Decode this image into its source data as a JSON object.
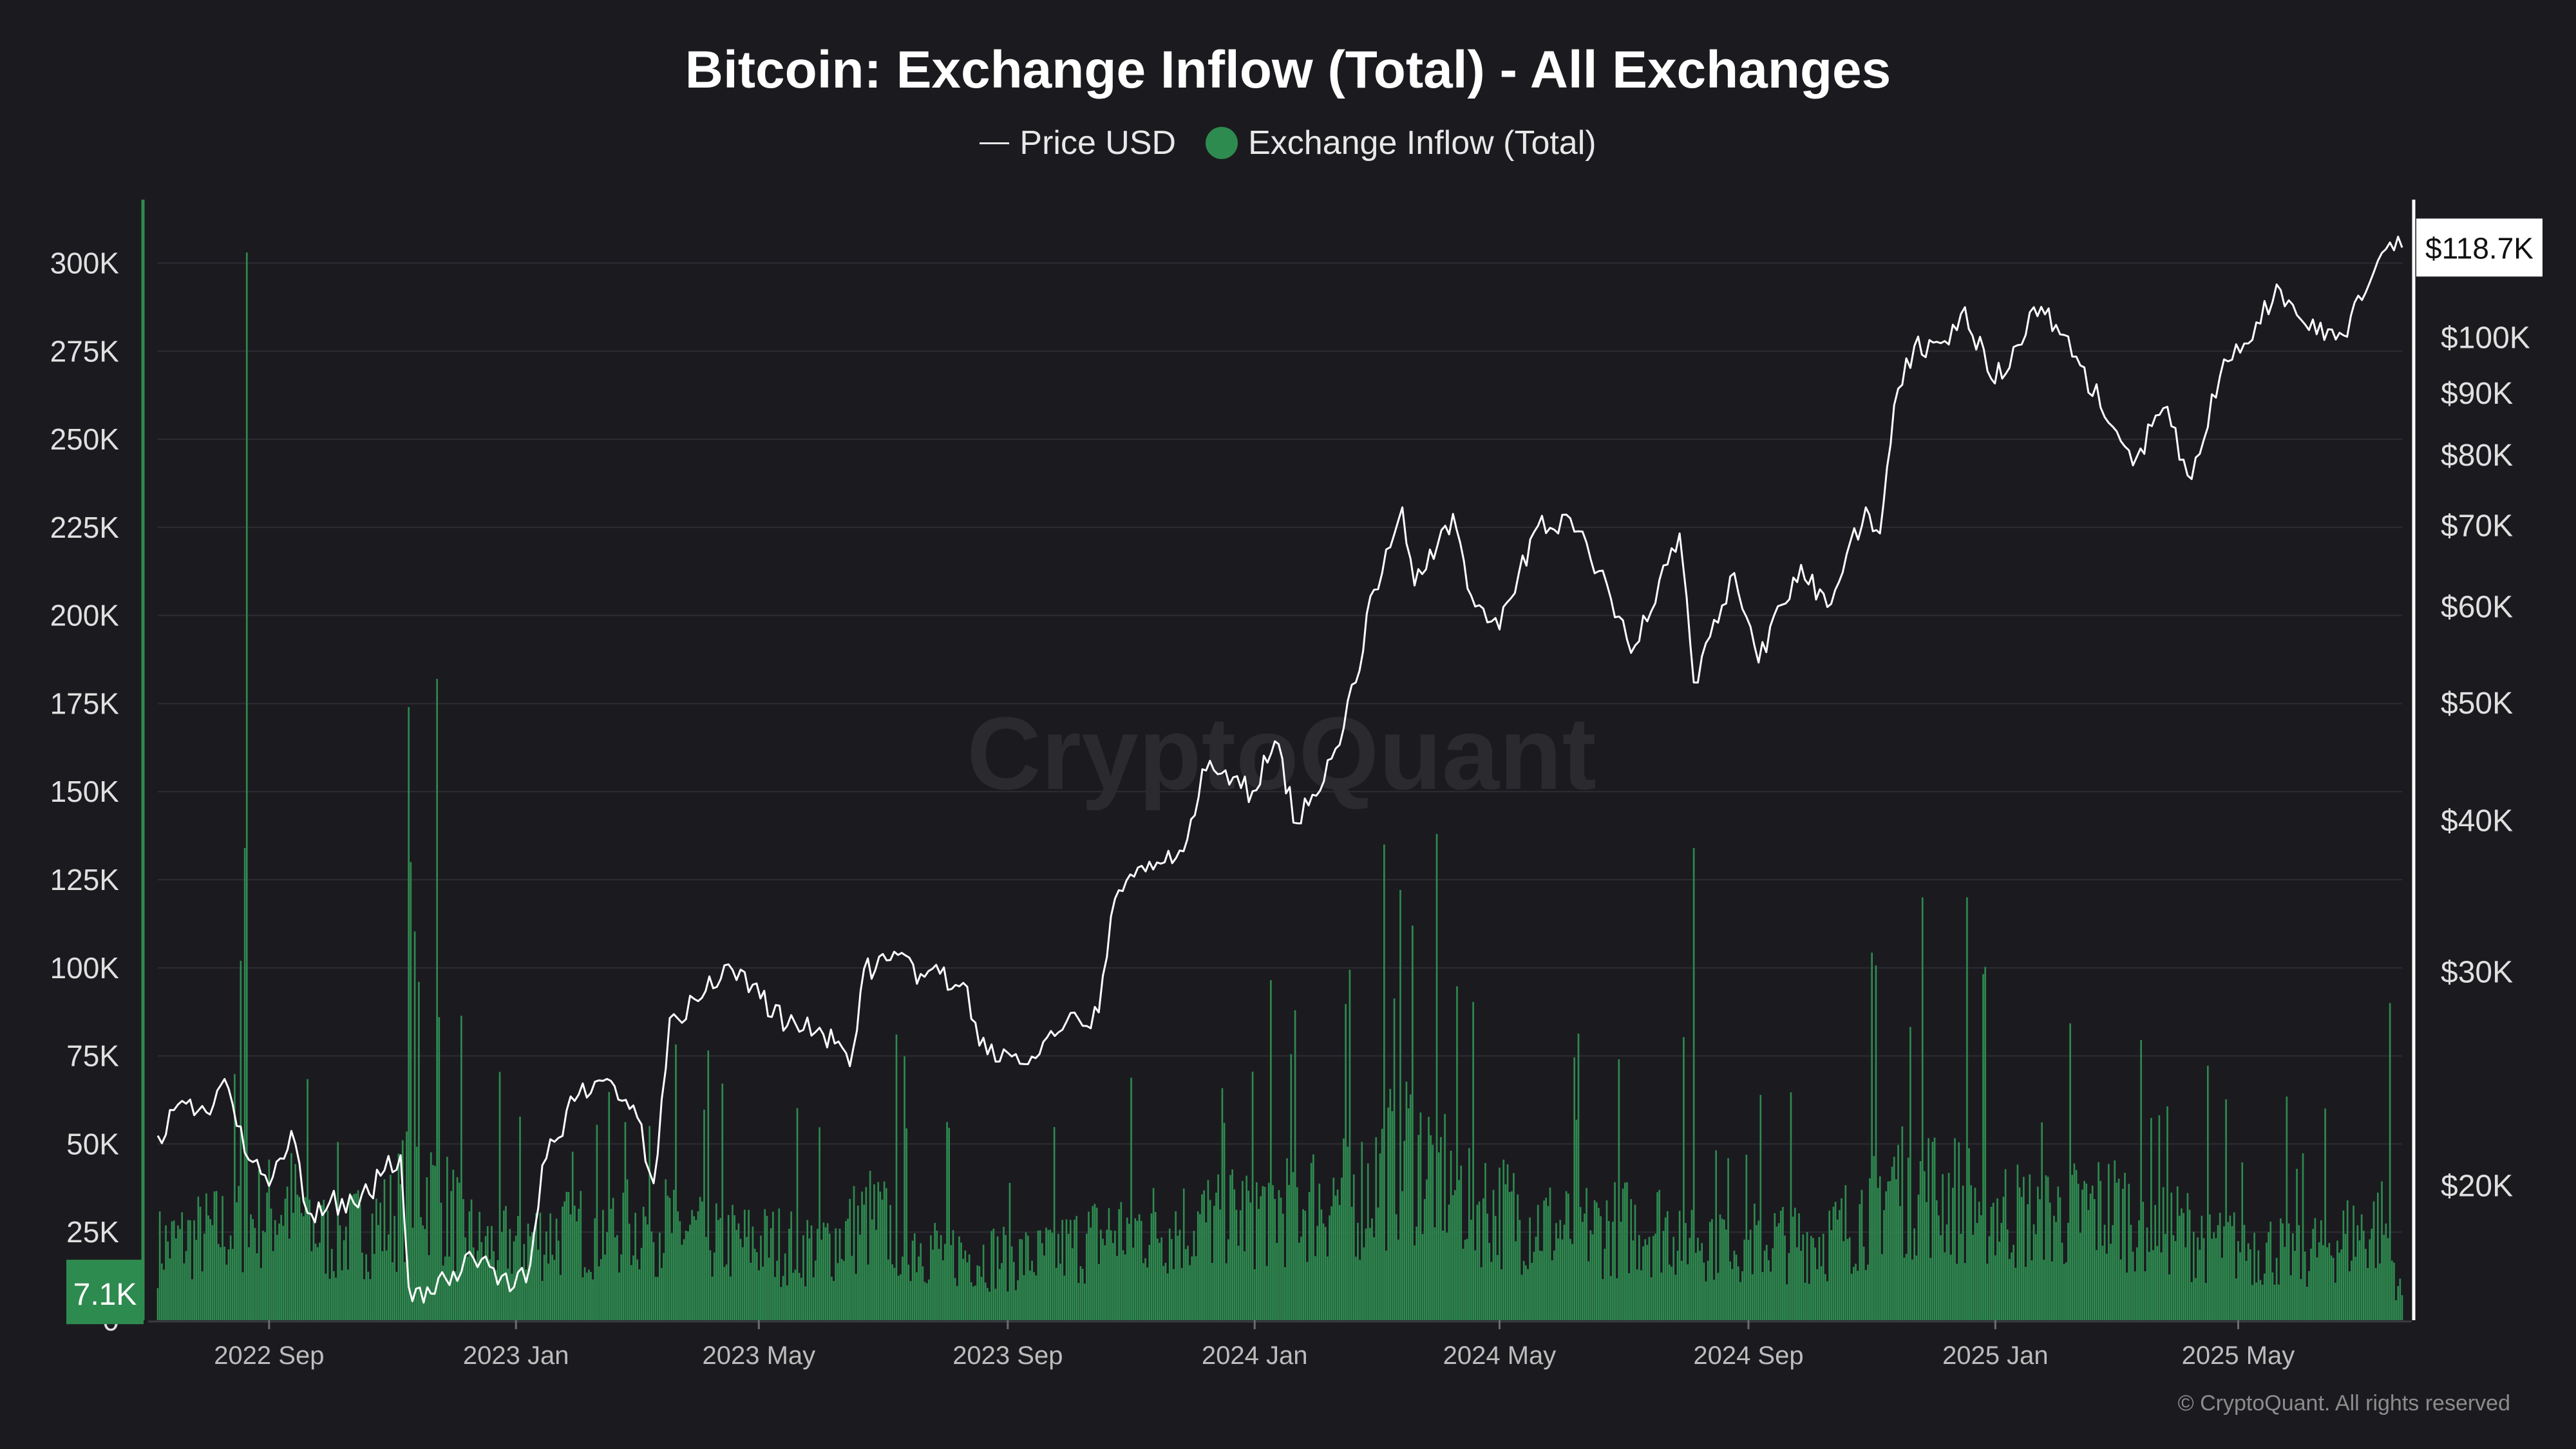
{
  "title": "Bitcoin: Exchange Inflow (Total) - All Exchanges",
  "legend": {
    "price_label": "Price USD",
    "inflow_label": "Exchange Inflow (Total)"
  },
  "watermark": "CryptoQuant",
  "copyright": "© CryptoQuant. All rights reserved",
  "colors": {
    "background": "#1b1b1f",
    "inflow": "#2e8b50",
    "price": "#ffffff",
    "grid": "#2c2c33",
    "badge_bg": "#2e8b50"
  },
  "badges": {
    "current_inflow": "7.1K",
    "current_price": "$118.7K"
  },
  "chart_data": {
    "type": "bar",
    "title": "Bitcoin: Exchange Inflow (Total) - All Exchanges",
    "x_range": [
      "2022-07-08",
      "2025-07-21"
    ],
    "x_ticks": [
      "2022 Sep",
      "2023 Jan",
      "2023 May",
      "2023 Sep",
      "2024 Jan",
      "2024 May",
      "2024 Sep",
      "2025 Jan",
      "2025 May"
    ],
    "y_left": {
      "ticks": [
        "0",
        "25K",
        "50K",
        "75K",
        "100K",
        "125K",
        "150K",
        "175K",
        "200K",
        "225K",
        "250K",
        "275K",
        "300K"
      ],
      "range": [
        0,
        318000
      ]
    },
    "y_right": {
      "scale": "log",
      "ticks": [
        "$20K",
        "$30K",
        "$40K",
        "$50K",
        "$60K",
        "$70K",
        "$80K",
        "$90K",
        "$100K"
      ],
      "range": [
        15500,
        130000
      ]
    },
    "series": [
      {
        "name": "Price USD",
        "type": "line",
        "points": [
          [
            "2022-07-08",
            22000
          ],
          [
            "2022-07-20",
            23500
          ],
          [
            "2022-08-01",
            23000
          ],
          [
            "2022-08-10",
            24500
          ],
          [
            "2022-08-20",
            21300
          ],
          [
            "2022-09-01",
            20000
          ],
          [
            "2022-09-12",
            22200
          ],
          [
            "2022-09-20",
            19000
          ],
          [
            "2022-10-01",
            19400
          ],
          [
            "2022-10-15",
            19200
          ],
          [
            "2022-10-28",
            20600
          ],
          [
            "2022-11-05",
            21200
          ],
          [
            "2022-11-09",
            16500
          ],
          [
            "2022-11-20",
            16300
          ],
          [
            "2022-12-01",
            17000
          ],
          [
            "2022-12-15",
            17400
          ],
          [
            "2022-12-31",
            16500
          ],
          [
            "2023-01-08",
            17200
          ],
          [
            "2023-01-14",
            20800
          ],
          [
            "2023-01-30",
            23500
          ],
          [
            "2023-02-15",
            24500
          ],
          [
            "2023-02-28",
            23300
          ],
          [
            "2023-03-10",
            20100
          ],
          [
            "2023-03-18",
            27500
          ],
          [
            "2023-04-01",
            28400
          ],
          [
            "2023-04-14",
            30400
          ],
          [
            "2023-04-28",
            29300
          ],
          [
            "2023-05-15",
            27100
          ],
          [
            "2023-05-31",
            27000
          ],
          [
            "2023-06-15",
            25100
          ],
          [
            "2023-06-22",
            30200
          ],
          [
            "2023-07-05",
            30700
          ],
          [
            "2023-07-20",
            29900
          ],
          [
            "2023-08-10",
            29400
          ],
          [
            "2023-08-18",
            26100
          ],
          [
            "2023-09-11",
            25200
          ],
          [
            "2023-09-28",
            26900
          ],
          [
            "2023-10-16",
            27800
          ],
          [
            "2023-10-24",
            34500
          ],
          [
            "2023-11-10",
            37000
          ],
          [
            "2023-11-25",
            37800
          ],
          [
            "2023-12-08",
            44000
          ],
          [
            "2023-12-31",
            42300
          ],
          [
            "2024-01-11",
            46500
          ],
          [
            "2024-01-22",
            39800
          ],
          [
            "2024-02-08",
            45000
          ],
          [
            "2024-02-20",
            52000
          ],
          [
            "2024-02-29",
            62000
          ],
          [
            "2024-03-14",
            72500
          ],
          [
            "2024-03-20",
            62500
          ],
          [
            "2024-04-08",
            71600
          ],
          [
            "2024-04-17",
            61300
          ],
          [
            "2024-05-01",
            57500
          ],
          [
            "2024-05-20",
            70000
          ],
          [
            "2024-06-05",
            71000
          ],
          [
            "2024-06-25",
            61000
          ],
          [
            "2024-07-05",
            55000
          ],
          [
            "2024-07-29",
            69000
          ],
          [
            "2024-08-05",
            52000
          ],
          [
            "2024-08-25",
            64000
          ],
          [
            "2024-09-06",
            54000
          ],
          [
            "2024-09-27",
            65000
          ],
          [
            "2024-10-10",
            60000
          ],
          [
            "2024-10-29",
            72500
          ],
          [
            "2024-11-05",
            69000
          ],
          [
            "2024-11-12",
            88000
          ],
          [
            "2024-11-22",
            98500
          ],
          [
            "2024-12-05",
            99000
          ],
          [
            "2024-12-17",
            106000
          ],
          [
            "2024-12-30",
            92500
          ],
          [
            "2025-01-08",
            94500
          ],
          [
            "2025-01-20",
            106000
          ],
          [
            "2025-01-31",
            102500
          ],
          [
            "2025-02-10",
            96500
          ],
          [
            "2025-02-28",
            84500
          ],
          [
            "2025-03-10",
            78500
          ],
          [
            "2025-03-25",
            87500
          ],
          [
            "2025-04-08",
            76500
          ],
          [
            "2025-04-22",
            93000
          ],
          [
            "2025-05-10",
            103000
          ],
          [
            "2025-05-22",
            109500
          ],
          [
            "2025-06-05",
            101500
          ],
          [
            "2025-06-22",
            100500
          ],
          [
            "2025-07-03",
            109000
          ],
          [
            "2025-07-11",
            117500
          ],
          [
            "2025-07-21",
            118700
          ]
        ]
      },
      {
        "name": "Exchange Inflow (Total)",
        "type": "bar",
        "anchors": [
          [
            "2022-07-08",
            26000
          ],
          [
            "2022-08-20",
            34000
          ],
          [
            "2022-09-10",
            42000
          ],
          [
            "2022-10-01",
            28000
          ],
          [
            "2022-11-01",
            36000
          ],
          [
            "2022-11-12",
            52000
          ],
          [
            "2022-12-15",
            26000
          ],
          [
            "2023-01-15",
            30000
          ],
          [
            "2023-03-10",
            35000
          ],
          [
            "2023-04-15",
            28000
          ],
          [
            "2023-06-01",
            26000
          ],
          [
            "2023-06-25",
            36000
          ],
          [
            "2023-08-01",
            24000
          ],
          [
            "2023-09-15",
            22000
          ],
          [
            "2023-10-25",
            32000
          ],
          [
            "2023-12-01",
            34000
          ],
          [
            "2024-01-11",
            40000
          ],
          [
            "2024-02-25",
            46000
          ],
          [
            "2024-03-15",
            62000
          ],
          [
            "2024-04-20",
            42000
          ],
          [
            "2024-06-01",
            32000
          ],
          [
            "2024-07-20",
            34000
          ],
          [
            "2024-09-01",
            28000
          ],
          [
            "2024-10-15",
            30000
          ],
          [
            "2024-11-12",
            50000
          ],
          [
            "2024-12-10",
            44000
          ],
          [
            "2025-01-20",
            36000
          ],
          [
            "2025-03-01",
            40000
          ],
          [
            "2025-04-20",
            28000
          ],
          [
            "2025-06-01",
            24000
          ],
          [
            "2025-07-12",
            34000
          ],
          [
            "2025-07-21",
            7100
          ]
        ],
        "spikes": [
          [
            "2022-08-21",
            303000
          ],
          [
            "2022-08-20",
            134000
          ],
          [
            "2022-08-18",
            102000
          ],
          [
            "2022-11-09",
            174000
          ],
          [
            "2022-11-10",
            130000
          ],
          [
            "2022-11-23",
            182000
          ],
          [
            "2022-11-14",
            96000
          ],
          [
            "2022-11-24",
            86000
          ],
          [
            "2024-03-05",
            135000
          ],
          [
            "2024-03-19",
            112000
          ],
          [
            "2024-08-05",
            134000
          ],
          [
            "2024-11-26",
            120000
          ],
          [
            "2024-12-18",
            120000
          ],
          [
            "2025-07-15",
            90000
          ]
        ]
      }
    ],
    "grid": true,
    "legend_position": "top-center"
  }
}
